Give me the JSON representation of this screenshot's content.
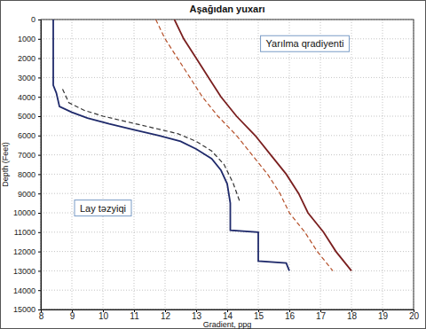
{
  "chart_data": {
    "type": "line",
    "title": "Aşağıdan yuxarı",
    "x_label": "Gradient, ppg",
    "y_label": "Depth (Feet)",
    "xlim": [
      8,
      20
    ],
    "xticks": [
      8,
      9,
      10,
      11,
      12,
      13,
      14,
      15,
      16,
      17,
      18,
      19,
      20
    ],
    "ylim": [
      0,
      15000
    ],
    "yticks": [
      0,
      1000,
      2000,
      3000,
      4000,
      5000,
      6000,
      7000,
      8000,
      9000,
      10000,
      11000,
      12000,
      13000,
      14000,
      15000
    ],
    "grid": true,
    "annotations": [
      {
        "text": "Yarılma qradiyenti",
        "x": 16.5,
        "y": 1300
      },
      {
        "text": "Lay təzyiqi",
        "x": 10.0,
        "y": 9800
      }
    ],
    "series": [
      {
        "color": "#1f2a6b",
        "line_style": "solid",
        "x": [
          8.4,
          8.4,
          8.5,
          8.6,
          9.0,
          9.5,
          10.2,
          11.0,
          11.8,
          12.5,
          13.0,
          13.5,
          13.8,
          14.0,
          14.1,
          14.1,
          15.0,
          15.0,
          15.9,
          16.0
        ],
        "values": [
          0,
          3400,
          3800,
          4500,
          4800,
          5100,
          5400,
          5700,
          6000,
          6300,
          6700,
          7200,
          7800,
          8500,
          9500,
          10900,
          11000,
          12500,
          12600,
          13000
        ]
      },
      {
        "color": "#333333",
        "line_style": "dashed",
        "x": [
          8.7,
          8.9,
          9.4,
          10.0,
          10.8,
          11.6,
          12.4,
          13.0,
          13.5,
          13.9,
          14.2,
          14.4
        ],
        "values": [
          3600,
          4300,
          4700,
          5000,
          5300,
          5600,
          5900,
          6300,
          6800,
          7500,
          8500,
          9400
        ]
      },
      {
        "color": "#7a1f1f",
        "line_style": "solid",
        "x": [
          12.3,
          12.6,
          13.0,
          13.4,
          13.8,
          14.3,
          14.9,
          15.4,
          15.9,
          16.3,
          16.6,
          17.1,
          17.5,
          18.0
        ],
        "values": [
          0,
          1000,
          2000,
          3000,
          4000,
          5000,
          6000,
          7000,
          8000,
          9000,
          10000,
          11000,
          12000,
          13000
        ]
      },
      {
        "color": "#b5502a",
        "line_style": "dashed",
        "x": [
          11.7,
          12.0,
          12.4,
          12.8,
          13.2,
          13.7,
          14.3,
          14.8,
          15.3,
          15.7,
          16.0,
          16.5,
          16.9,
          17.4
        ],
        "values": [
          0,
          1000,
          2000,
          3000,
          4000,
          5000,
          6000,
          7000,
          8000,
          9000,
          10000,
          11000,
          12000,
          13000
        ]
      }
    ]
  }
}
